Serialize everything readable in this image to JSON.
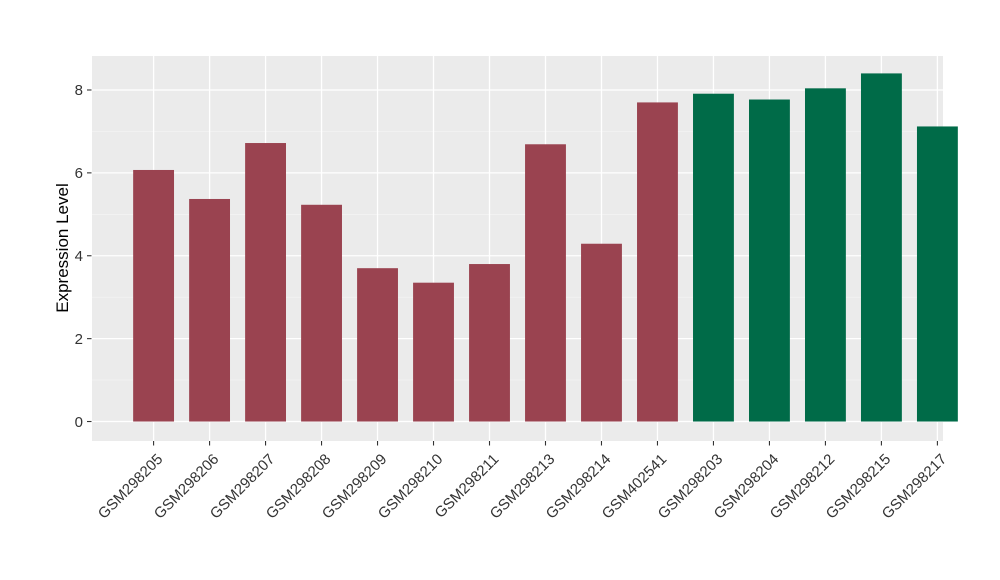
{
  "chart_data": {
    "type": "bar",
    "title": "",
    "xlabel": "",
    "ylabel": "Expression Level",
    "categories": [
      "GSM298205",
      "GSM298206",
      "GSM298207",
      "GSM298208",
      "GSM298209",
      "GSM298210",
      "GSM298211",
      "GSM298213",
      "GSM298214",
      "GSM402541",
      "GSM298203",
      "GSM298204",
      "GSM298212",
      "GSM298215",
      "GSM298217"
    ],
    "values": [
      6.07,
      5.37,
      6.72,
      5.23,
      3.7,
      3.35,
      3.8,
      6.69,
      4.29,
      7.7,
      7.91,
      7.77,
      8.04,
      8.4,
      7.12
    ],
    "groups": [
      "maroon",
      "maroon",
      "maroon",
      "maroon",
      "maroon",
      "maroon",
      "maroon",
      "maroon",
      "maroon",
      "maroon",
      "green",
      "green",
      "green",
      "green",
      "green"
    ],
    "palette": {
      "maroon": "#9A4350",
      "green": "#006B48"
    },
    "yticks": [
      0,
      2,
      4,
      6,
      8
    ],
    "minor_yticks": [
      1,
      3,
      5,
      7
    ],
    "ylim": [
      -0.47,
      8.82
    ],
    "x_tick_rotation_deg": 45,
    "grid": true,
    "legend": "none",
    "panel_background": "#EBEBEB",
    "grid_major_color": "#FFFFFF",
    "grid_minor_color": "#F5F5F5",
    "tick_mark_color": "#333333",
    "tick_text_color": "#333333",
    "axis_title_color": "#000000"
  }
}
